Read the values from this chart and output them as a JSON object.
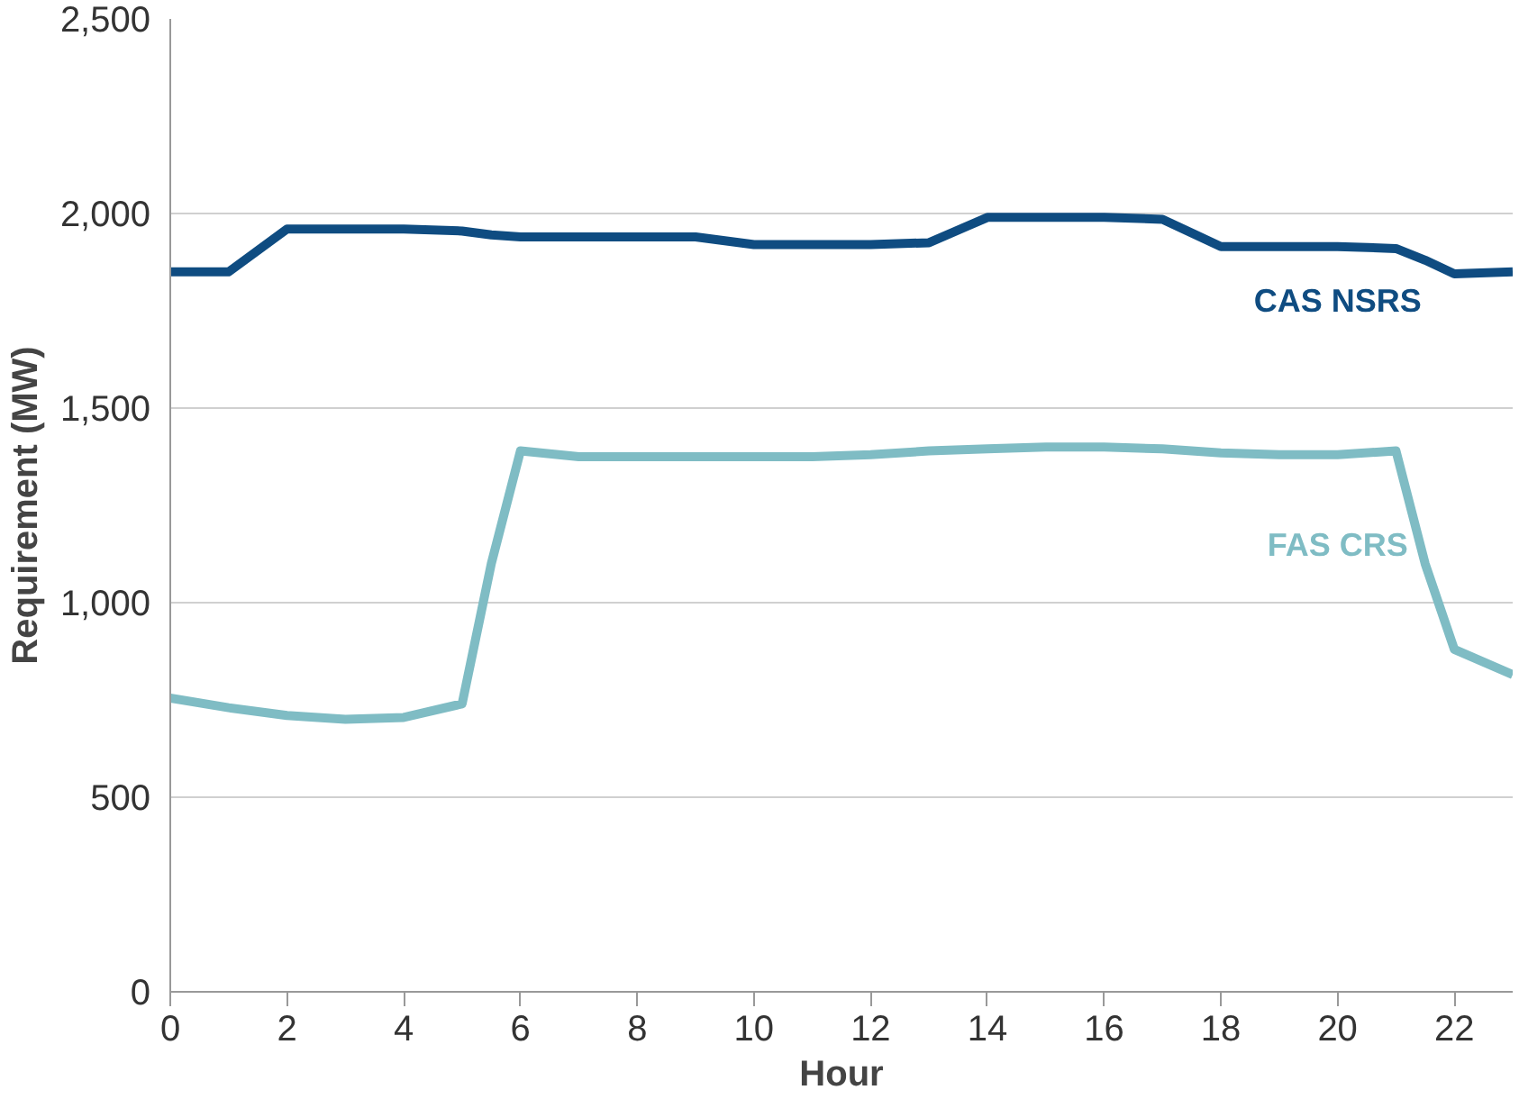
{
  "chart_data": {
    "type": "line",
    "xlabel": "Hour",
    "ylabel": "Requirement (MW)",
    "x": [
      0,
      1,
      2,
      3,
      4,
      5,
      5.5,
      6,
      7,
      8,
      9,
      10,
      11,
      12,
      13,
      14,
      15,
      16,
      17,
      18,
      19,
      20,
      21,
      21.5,
      22,
      23
    ],
    "series": [
      {
        "name": "CAS NSRS",
        "color": "#0f4c81",
        "values": [
          1850,
          1850,
          1960,
          1960,
          1960,
          1955,
          1945,
          1940,
          1940,
          1940,
          1940,
          1920,
          1920,
          1920,
          1925,
          1990,
          1990,
          1990,
          1985,
          1915,
          1915,
          1915,
          1910,
          1880,
          1845,
          1850
        ]
      },
      {
        "name": "FAS CRS",
        "color": "#7fbcc4",
        "values": [
          755,
          730,
          710,
          700,
          705,
          740,
          1100,
          1390,
          1375,
          1375,
          1375,
          1375,
          1375,
          1380,
          1390,
          1395,
          1400,
          1400,
          1395,
          1385,
          1380,
          1380,
          1390,
          1100,
          880,
          815
        ]
      }
    ],
    "xlim": [
      0,
      23
    ],
    "ylim": [
      0,
      2500
    ],
    "xticks": [
      0,
      2,
      4,
      6,
      8,
      10,
      12,
      14,
      16,
      18,
      20,
      22
    ],
    "yticks": [
      0,
      500,
      {
        "value": 1000,
        "label": "1,000"
      },
      {
        "value": 1500,
        "label": "1,500"
      },
      {
        "value": 2000,
        "label": "2,000"
      },
      {
        "value": 2500,
        "label": "2,500"
      }
    ],
    "grid": "y",
    "legend": false,
    "line_style": "solid",
    "marker": "none"
  }
}
